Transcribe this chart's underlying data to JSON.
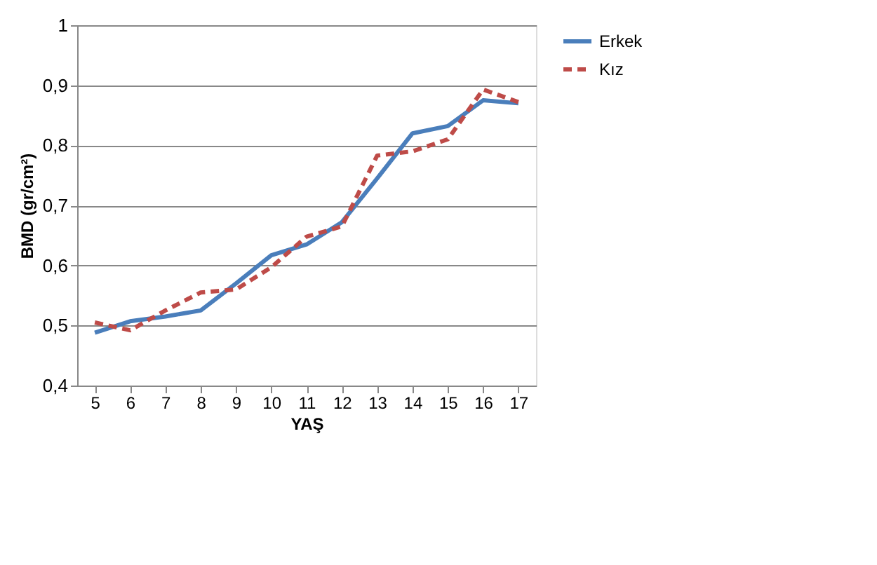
{
  "chart_data": {
    "type": "line",
    "xlabel": "YAŞ",
    "ylabel": "BMD (gr/cm²)",
    "categories": [
      "5",
      "6",
      "7",
      "8",
      "9",
      "10",
      "11",
      "12",
      "13",
      "14",
      "15",
      "16",
      "17"
    ],
    "series": [
      {
        "name": "Erkek",
        "color": "#4a7ebb",
        "line_style": "solid",
        "values": [
          0.488,
          0.507,
          0.515,
          0.525,
          0.57,
          0.617,
          0.635,
          0.672,
          0.745,
          0.82,
          0.832,
          0.875,
          0.87
        ]
      },
      {
        "name": "Kız",
        "color": "#be4b48",
        "line_style": "dashed",
        "values": [
          0.505,
          0.492,
          0.525,
          0.555,
          0.56,
          0.597,
          0.648,
          0.665,
          0.783,
          0.79,
          0.81,
          0.893,
          0.872
        ]
      }
    ],
    "ylim": [
      0.4,
      1
    ],
    "yticks": [
      {
        "value": 0.4,
        "label": "0,4"
      },
      {
        "value": 0.5,
        "label": "0,5"
      },
      {
        "value": 0.6,
        "label": "0,6"
      },
      {
        "value": 0.7,
        "label": "0,7"
      },
      {
        "value": 0.8,
        "label": "0,8"
      },
      {
        "value": 0.9,
        "label": "0,9"
      },
      {
        "value": 1,
        "label": "1"
      }
    ],
    "grid": "y",
    "legend": "right",
    "marker": "none"
  }
}
